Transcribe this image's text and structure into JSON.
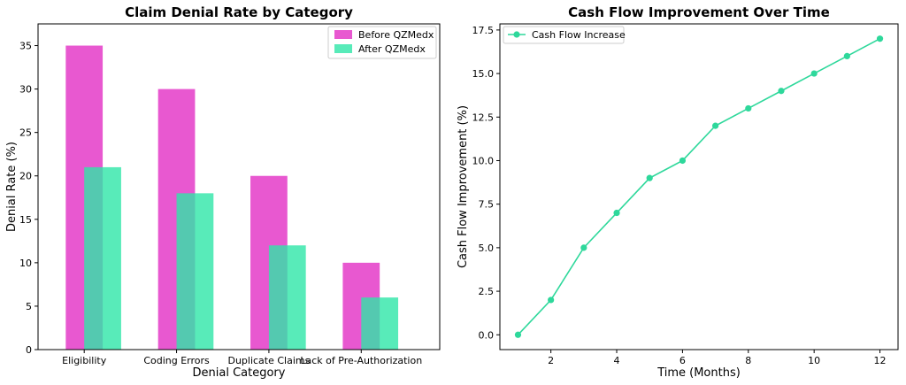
{
  "chart_data": [
    {
      "type": "bar",
      "title": "Claim Denial Rate by Category",
      "xlabel": "Denial Category",
      "ylabel": "Denial Rate (%)",
      "categories": [
        "Eligibility",
        "Coding Errors",
        "Duplicate Claims",
        "Lack of Pre-Authorization"
      ],
      "series": [
        {
          "name": "Before QZMedx",
          "values": [
            35,
            30,
            20,
            10
          ],
          "color": "#e22ec4"
        },
        {
          "name": "After QZMedx",
          "values": [
            21,
            18,
            12,
            6
          ],
          "color": "#2ee6a8"
        }
      ],
      "ylim": [
        0,
        37.5
      ],
      "yticks": [
        0,
        5,
        10,
        15,
        20,
        25,
        30,
        35
      ],
      "legend_position": "top-right",
      "grid": false
    },
    {
      "type": "line",
      "title": "Cash Flow Improvement Over Time",
      "xlabel": "Time (Months)",
      "ylabel": "Cash Flow Improvement (%)",
      "x": [
        1,
        2,
        3,
        4,
        5,
        6,
        7,
        8,
        9,
        10,
        11,
        12
      ],
      "series": [
        {
          "name": "Cash Flow Increase",
          "values": [
            0,
            2,
            5,
            7,
            9,
            10,
            12,
            13,
            14,
            15,
            16,
            17
          ],
          "color": "#2ed89b"
        }
      ],
      "xlim": [
        0.45,
        12.55
      ],
      "ylim": [
        -0.85,
        17.85
      ],
      "xticks": [
        2,
        4,
        6,
        8,
        10,
        12
      ],
      "yticks": [
        0.0,
        2.5,
        5.0,
        7.5,
        10.0,
        12.5,
        15.0,
        17.5
      ],
      "ytick_format": "0.0",
      "legend_position": "top-left",
      "grid": false
    }
  ]
}
